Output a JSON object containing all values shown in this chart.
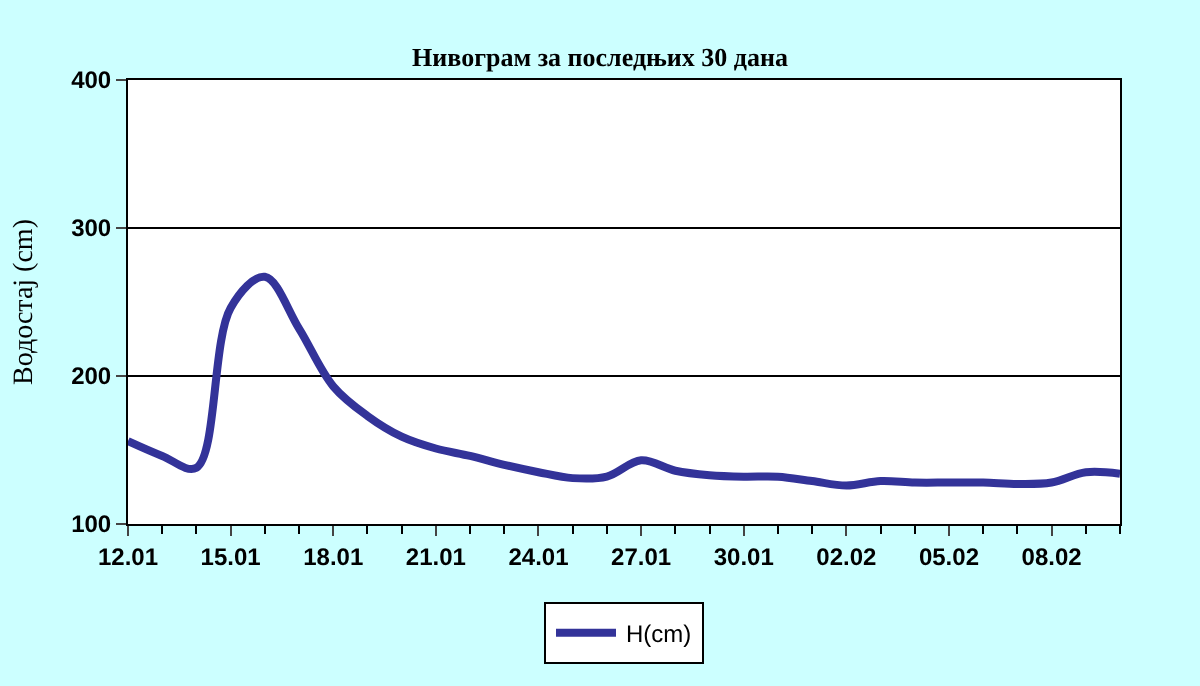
{
  "chart_data": {
    "type": "line",
    "title": "Нивограм за последњих 30 дана",
    "ylabel": "Водостај (cm)",
    "categories": [
      "12.01",
      null,
      null,
      "15.01",
      null,
      null,
      "18.01",
      null,
      null,
      "21.01",
      null,
      null,
      "24.01",
      null,
      null,
      "27.01",
      null,
      null,
      "30.01",
      null,
      null,
      "02.02",
      null,
      null,
      "05.02",
      null,
      null,
      "08.02",
      null,
      null
    ],
    "series": [
      {
        "name": "H(cm)",
        "color": "#333399",
        "values": [
          156,
          146,
          138,
          246,
          267,
          232,
          193,
          173,
          159,
          151,
          146,
          140,
          135,
          131,
          132,
          143,
          136,
          133,
          132,
          132,
          129,
          126,
          129,
          128,
          128,
          128,
          127,
          128,
          135,
          134
        ]
      }
    ],
    "ylim": [
      100,
      400
    ],
    "yticks": [
      100,
      200,
      300,
      400
    ],
    "grid": "y",
    "legend": "bottom",
    "marker": "none",
    "line_style": "solid"
  }
}
